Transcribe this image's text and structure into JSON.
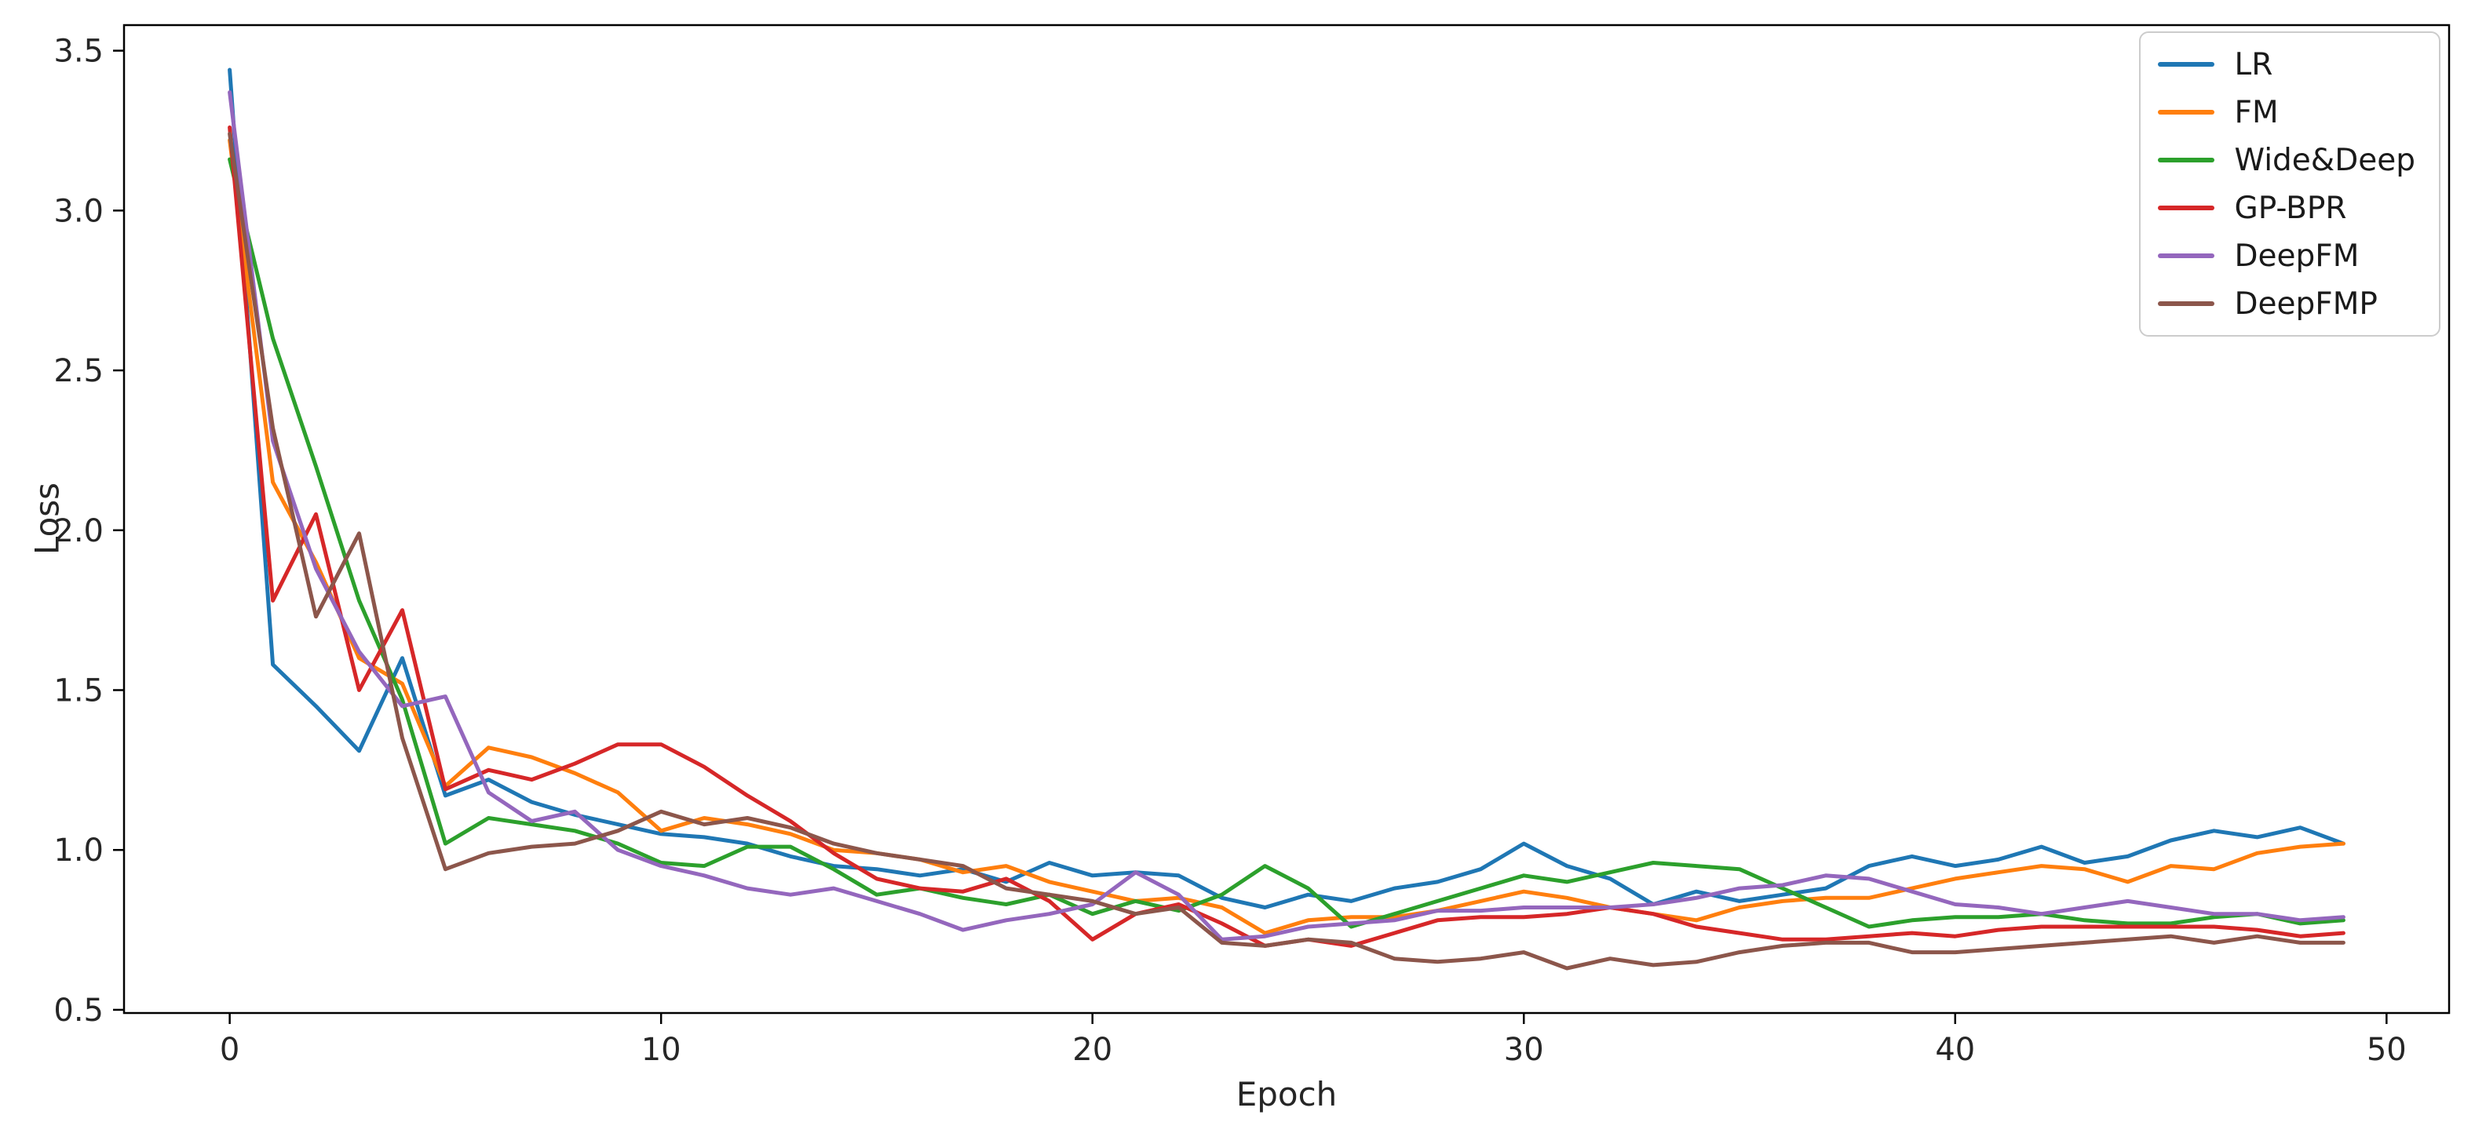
{
  "chart_data": {
    "type": "line",
    "title": "",
    "xlabel": "Epoch",
    "ylabel": "Loss",
    "x_description": "epoch index 0-49; series values are per-epoch loss",
    "xlim": [
      -2.45,
      51.45
    ],
    "ylim": [
      0.49,
      3.58
    ],
    "grid": false,
    "legend_position": "upper right",
    "x_ticks": [
      0,
      10,
      20,
      30,
      40,
      50
    ],
    "x_tick_labels": [
      "0",
      "10",
      "20",
      "30",
      "40",
      "50"
    ],
    "y_ticks": [
      0.5,
      1.0,
      1.5,
      2.0,
      2.5,
      3.0,
      3.5
    ],
    "y_tick_labels": [
      "0.5",
      "1.0",
      "1.5",
      "2.0",
      "2.5",
      "3.0",
      "3.5"
    ],
    "series": [
      {
        "name": "LR",
        "color": "#1f77b4",
        "values": [
          3.44,
          1.58,
          1.45,
          1.31,
          1.6,
          1.17,
          1.22,
          1.15,
          1.11,
          1.08,
          1.05,
          1.04,
          1.02,
          0.98,
          0.95,
          0.94,
          0.92,
          0.94,
          0.9,
          0.96,
          0.92,
          0.93,
          0.92,
          0.85,
          0.82,
          0.86,
          0.84,
          0.88,
          0.9,
          0.94,
          1.02,
          0.95,
          0.91,
          0.83,
          0.87,
          0.84,
          0.86,
          0.88,
          0.95,
          0.98,
          0.95,
          0.97,
          1.01,
          0.96,
          0.98,
          1.03,
          1.06,
          1.04,
          1.07,
          1.02
        ]
      },
      {
        "name": "FM",
        "color": "#ff7f0e",
        "values": [
          3.22,
          2.15,
          1.9,
          1.6,
          1.52,
          1.2,
          1.32,
          1.29,
          1.24,
          1.18,
          1.06,
          1.1,
          1.08,
          1.05,
          1.0,
          0.99,
          0.97,
          0.93,
          0.95,
          0.9,
          0.87,
          0.84,
          0.85,
          0.82,
          0.74,
          0.78,
          0.79,
          0.79,
          0.81,
          0.84,
          0.87,
          0.85,
          0.82,
          0.8,
          0.78,
          0.82,
          0.84,
          0.85,
          0.85,
          0.88,
          0.91,
          0.93,
          0.95,
          0.94,
          0.9,
          0.95,
          0.94,
          0.99,
          1.01,
          1.02
        ]
      },
      {
        "name": "Wide&Deep",
        "color": "#2ca02c",
        "values": [
          3.16,
          2.6,
          2.2,
          1.78,
          1.47,
          1.02,
          1.1,
          1.08,
          1.06,
          1.02,
          0.96,
          0.95,
          1.01,
          1.01,
          0.94,
          0.86,
          0.88,
          0.85,
          0.83,
          0.86,
          0.8,
          0.84,
          0.81,
          0.86,
          0.95,
          0.88,
          0.76,
          0.8,
          0.84,
          0.88,
          0.92,
          0.9,
          0.93,
          0.96,
          0.95,
          0.94,
          0.88,
          0.82,
          0.76,
          0.78,
          0.79,
          0.79,
          0.8,
          0.78,
          0.77,
          0.77,
          0.79,
          0.8,
          0.77,
          0.78
        ]
      },
      {
        "name": "GP-BPR",
        "color": "#d62728",
        "values": [
          3.26,
          1.78,
          2.05,
          1.5,
          1.75,
          1.19,
          1.25,
          1.22,
          1.27,
          1.33,
          1.33,
          1.26,
          1.17,
          1.09,
          0.99,
          0.91,
          0.88,
          0.87,
          0.91,
          0.84,
          0.72,
          0.8,
          0.83,
          0.77,
          0.7,
          0.72,
          0.7,
          0.74,
          0.78,
          0.79,
          0.79,
          0.8,
          0.82,
          0.8,
          0.76,
          0.74,
          0.72,
          0.72,
          0.73,
          0.74,
          0.73,
          0.75,
          0.76,
          0.76,
          0.76,
          0.76,
          0.76,
          0.75,
          0.73,
          0.74
        ]
      },
      {
        "name": "DeepFM",
        "color": "#9467bd",
        "values": [
          3.37,
          2.28,
          1.88,
          1.62,
          1.45,
          1.48,
          1.18,
          1.09,
          1.12,
          1.0,
          0.95,
          0.92,
          0.88,
          0.86,
          0.88,
          0.84,
          0.8,
          0.75,
          0.78,
          0.8,
          0.83,
          0.93,
          0.86,
          0.72,
          0.73,
          0.76,
          0.77,
          0.78,
          0.81,
          0.81,
          0.82,
          0.82,
          0.82,
          0.83,
          0.85,
          0.88,
          0.89,
          0.92,
          0.91,
          0.87,
          0.83,
          0.82,
          0.8,
          0.82,
          0.84,
          0.82,
          0.8,
          0.8,
          0.78,
          0.79
        ]
      },
      {
        "name": "DeepFMP",
        "color": "#8c564b",
        "values": [
          3.24,
          2.32,
          1.73,
          1.99,
          1.35,
          0.94,
          0.99,
          1.01,
          1.02,
          1.06,
          1.12,
          1.08,
          1.1,
          1.07,
          1.02,
          0.99,
          0.97,
          0.95,
          0.88,
          0.86,
          0.84,
          0.8,
          0.82,
          0.71,
          0.7,
          0.72,
          0.71,
          0.66,
          0.65,
          0.66,
          0.68,
          0.63,
          0.66,
          0.64,
          0.65,
          0.68,
          0.7,
          0.71,
          0.71,
          0.68,
          0.68,
          0.69,
          0.7,
          0.71,
          0.72,
          0.73,
          0.71,
          0.73,
          0.71,
          0.71
        ]
      }
    ]
  }
}
